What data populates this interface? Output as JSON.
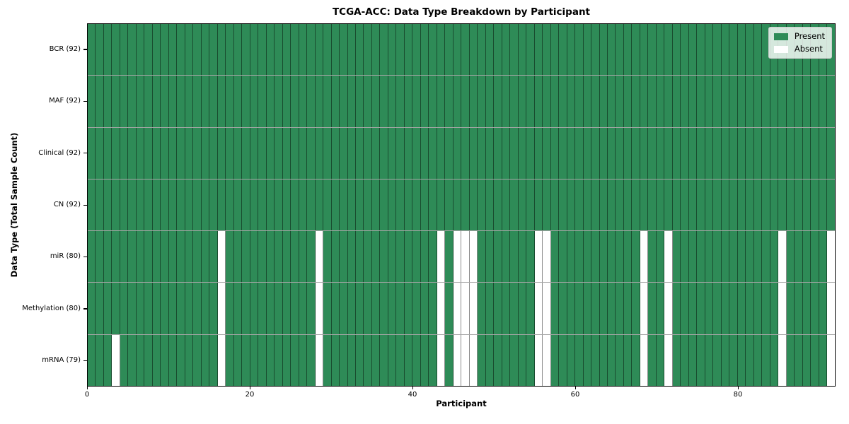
{
  "chart_data": {
    "type": "heatmap",
    "title": "TCGA-ACC: Data Type Breakdown by Participant",
    "xlabel": "Participant",
    "ylabel": "Data Type (Total Sample Count)",
    "n_participants": 92,
    "x_ticks": [
      0,
      20,
      40,
      60,
      80
    ],
    "x_range": [
      0,
      92
    ],
    "grid": true,
    "legend_position": "upper right",
    "legend": [
      {
        "label": "Present",
        "color": "#2E8B57"
      },
      {
        "label": "Absent",
        "color": "#FFFFFF"
      }
    ],
    "colors": {
      "present": "#2E8B57",
      "absent": "#FFFFFF"
    },
    "rows": [
      {
        "label": "BCR (92)",
        "name": "BCR",
        "present_count": 92,
        "absent_participants": []
      },
      {
        "label": "MAF (92)",
        "name": "MAF",
        "present_count": 92,
        "absent_participants": []
      },
      {
        "label": "Clinical (92)",
        "name": "Clinical",
        "present_count": 92,
        "absent_participants": []
      },
      {
        "label": "CN (92)",
        "name": "CN",
        "present_count": 92,
        "absent_participants": []
      },
      {
        "label": "miR (80)",
        "name": "miR",
        "present_count": 80,
        "absent_participants": [
          16,
          28,
          43,
          45,
          46,
          47,
          55,
          56,
          68,
          71,
          85,
          91
        ]
      },
      {
        "label": "Methylation (80)",
        "name": "Methylation",
        "present_count": 80,
        "absent_participants": [
          16,
          28,
          43,
          45,
          46,
          47,
          55,
          56,
          68,
          71,
          85,
          91
        ]
      },
      {
        "label": "mRNA (79)",
        "name": "mRNA",
        "present_count": 79,
        "absent_participants": [
          3,
          16,
          28,
          43,
          45,
          46,
          47,
          55,
          56,
          68,
          71,
          85,
          91
        ]
      }
    ]
  }
}
